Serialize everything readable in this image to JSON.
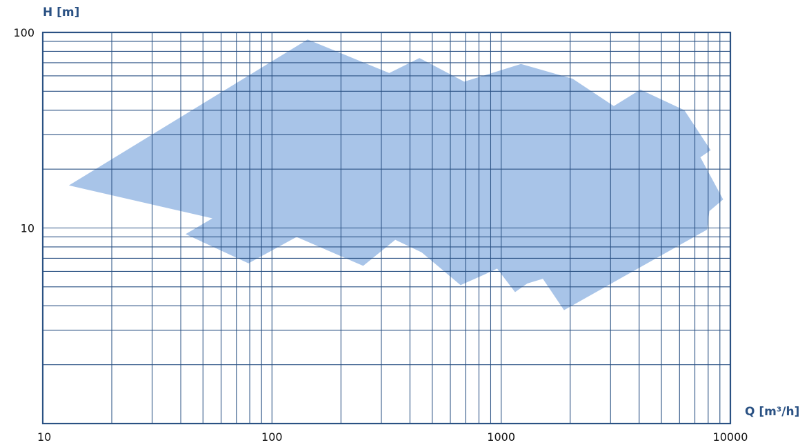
{
  "chart_data": {
    "type": "area",
    "title": "",
    "xlabel": "Q [m³/h]",
    "ylabel": "H [m]",
    "x_scale": "log",
    "y_scale": "log",
    "xlim": [
      10,
      10000
    ],
    "ylim": [
      1,
      100
    ],
    "x_ticks": [
      {
        "value": 10,
        "label": "10"
      },
      {
        "value": 100,
        "label": "100"
      },
      {
        "value": 1000,
        "label": "1000"
      },
      {
        "value": 10000,
        "label": "10000"
      }
    ],
    "y_ticks": [
      {
        "value": 10,
        "label": "10"
      },
      {
        "value": 100,
        "label": "100"
      }
    ],
    "grid": true,
    "legend": "none",
    "colors": {
      "area": "#a8c4e8",
      "grid": "#2a5183",
      "axis_text": "#2a5183",
      "tick_text": "#111111"
    },
    "series": [
      {
        "fill": "#a8c4e8",
        "points": [
          [
            13,
            16.5
          ],
          [
            143,
            92
          ],
          [
            325,
            62
          ],
          [
            440,
            74
          ],
          [
            690,
            56
          ],
          [
            1220,
            69
          ],
          [
            2050,
            58
          ],
          [
            3100,
            42
          ],
          [
            4050,
            51
          ],
          [
            6300,
            40
          ],
          [
            8200,
            25
          ],
          [
            7400,
            23
          ],
          [
            9300,
            14
          ],
          [
            8100,
            12.2
          ],
          [
            7900,
            9.8
          ],
          [
            1880,
            3.8
          ],
          [
            1520,
            5.5
          ],
          [
            1300,
            5.2
          ],
          [
            1150,
            4.7
          ],
          [
            960,
            6.2
          ],
          [
            850,
            5.8
          ],
          [
            665,
            5.1
          ],
          [
            450,
            7.5
          ],
          [
            345,
            8.7
          ],
          [
            250,
            6.4
          ],
          [
            128,
            9
          ],
          [
            79,
            6.6
          ],
          [
            42,
            9.3
          ],
          [
            55,
            11.2
          ],
          [
            13,
            16.5
          ]
        ]
      }
    ]
  }
}
